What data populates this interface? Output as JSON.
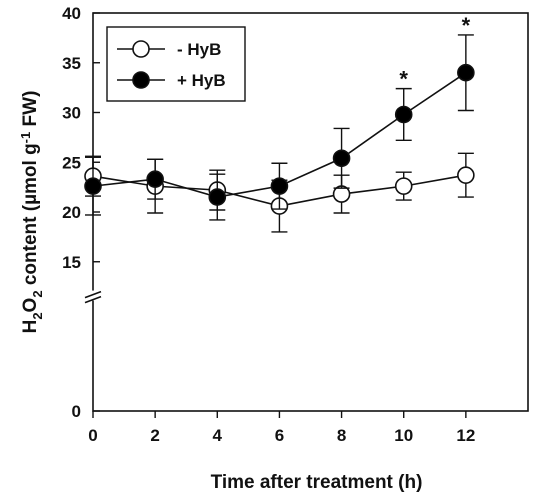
{
  "chart_data": {
    "type": "line",
    "xlabel": "Time after treatment (h)",
    "ylabel": {
      "parts": [
        "H",
        "2",
        "O",
        "2",
        " content  (µmol g",
        "-1",
        " FW)"
      ]
    },
    "x": [
      0,
      2,
      4,
      6,
      8,
      10,
      12
    ],
    "xlim": [
      0,
      14
    ],
    "ylim": [
      0,
      40
    ],
    "xticks": [
      "0",
      "2",
      "4",
      "6",
      "8",
      "10",
      "12"
    ],
    "yticks": [
      {
        "value": 0,
        "label": "0"
      },
      {
        "value": 15,
        "label": "15"
      },
      {
        "value": 20,
        "label": "20"
      },
      {
        "value": 25,
        "label": "25"
      },
      {
        "value": 30,
        "label": "30"
      },
      {
        "value": 35,
        "label": "35"
      },
      {
        "value": 40,
        "label": "40"
      }
    ],
    "axis_break": true,
    "legend_position": "top-left",
    "series": [
      {
        "name": "- HyB",
        "marker": "open-circle",
        "values": [
          23.6,
          22.6,
          22.2,
          20.6,
          21.8,
          22.6,
          23.7
        ],
        "errors": [
          2.0,
          2.7,
          2.0,
          2.6,
          1.9,
          1.4,
          2.2
        ]
      },
      {
        "name": "+ HyB",
        "marker": "filled-circle",
        "values": [
          22.6,
          23.3,
          21.5,
          22.6,
          25.4,
          29.8,
          34.0
        ],
        "errors": [
          2.9,
          2.0,
          2.3,
          2.3,
          3.0,
          2.6,
          3.8
        ]
      }
    ],
    "annotations": [
      {
        "x": 10,
        "text": "*"
      },
      {
        "x": 12,
        "text": "*"
      }
    ]
  }
}
